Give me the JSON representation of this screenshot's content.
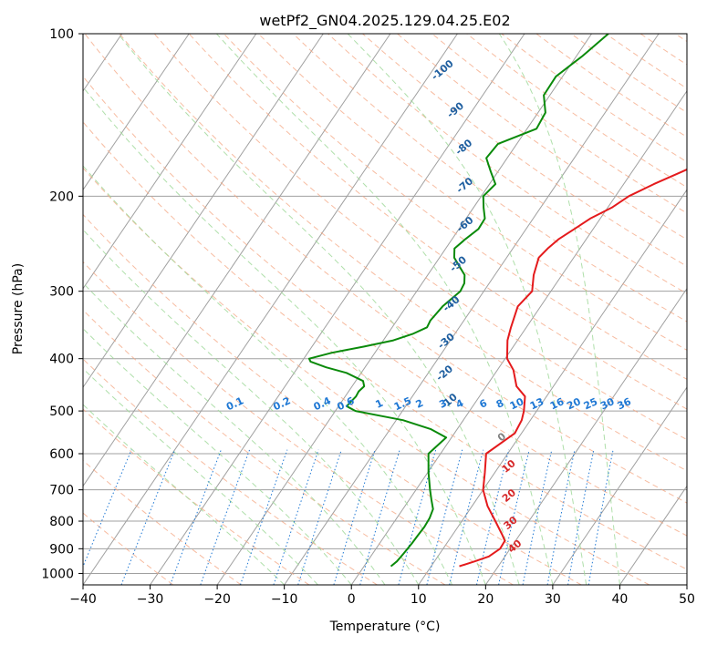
{
  "chart_data": {
    "type": "line",
    "title": "wetPf2_GN04.2025.129.04.25.E02",
    "xlabel": "Temperature (°C)",
    "ylabel": "Pressure (hPa)",
    "xlim": [
      -40,
      50
    ],
    "ylim": [
      1050,
      100
    ],
    "x_ticks": [
      "−40",
      "−30",
      "−20",
      "−10",
      "0",
      "10",
      "20",
      "30",
      "40",
      "50"
    ],
    "x_tick_values": [
      -40,
      -30,
      -20,
      -10,
      0,
      10,
      20,
      30,
      40,
      50
    ],
    "y_ticks": [
      "100",
      "200",
      "300",
      "400",
      "500",
      "600",
      "700",
      "800",
      "900",
      "1000"
    ],
    "y_tick_values": [
      100,
      200,
      300,
      400,
      500,
      600,
      700,
      800,
      900,
      1000
    ],
    "y_scale": "log",
    "grid": true,
    "colors": {
      "temperature": "#e41a1c",
      "dewpoint": "#0a8a0a",
      "dry_adiabats": "#f4a582",
      "moist_adiabats": "#a1d99b",
      "mixing_ratio": "#1f78d4",
      "isotherms": "#a0a0a0",
      "adiabat_labels": "#1f5fa0",
      "theta_e_labels": "#d62728",
      "zero_label": "#808080"
    },
    "series": [
      {
        "key": "temperature",
        "pressure": [
          970,
          950,
          930,
          900,
          870,
          850,
          800,
          750,
          700,
          650,
          600,
          550,
          520,
          500,
          470,
          450,
          420,
          400,
          370,
          350,
          320,
          300,
          280,
          260,
          250,
          240,
          230,
          220,
          210,
          200,
          190,
          180,
          170,
          160,
          150,
          140,
          130,
          120,
          110,
          100
        ],
        "values": [
          14.2,
          16,
          17.6,
          18.5,
          18.4,
          17.5,
          15,
          12.3,
          10,
          8.5,
          6.8,
          9,
          8.7,
          8.1,
          6.8,
          4.5,
          2.4,
          0.3,
          -1.5,
          -2.3,
          -3.4,
          -2.8,
          -4.2,
          -5.2,
          -4.8,
          -4.1,
          -2.8,
          -1.5,
          0.6,
          2,
          4.5,
          7.5,
          10.5,
          13,
          14.7,
          15.6,
          17.2,
          19.1,
          21.4,
          23.6
        ]
      },
      {
        "key": "dewpoint",
        "pressure": [
          970,
          950,
          920,
          880,
          850,
          820,
          790,
          760,
          730,
          700,
          650,
          600,
          560,
          540,
          520,
          510,
          500,
          490,
          470,
          460,
          450,
          440,
          425,
          415,
          405,
          400,
          390,
          380,
          370,
          360,
          350,
          340,
          320,
          300,
          290,
          280,
          260,
          250,
          240,
          230,
          220,
          210,
          200,
          190,
          180,
          170,
          160,
          150,
          140,
          130,
          120,
          110,
          100
        ],
        "values": [
          4,
          4.4,
          4.6,
          4.8,
          4.9,
          5,
          4.9,
          4.5,
          3.3,
          2.1,
          0.1,
          -1.8,
          -0.8,
          -4,
          -9,
          -13,
          -17,
          -18.8,
          -18.4,
          -18.5,
          -18.2,
          -18.9,
          -22.2,
          -25.8,
          -28.7,
          -29.2,
          -26.4,
          -22.3,
          -18.5,
          -16.3,
          -14.8,
          -15,
          -14.6,
          -13.5,
          -13.7,
          -14.5,
          -17.8,
          -18.7,
          -18,
          -17.1,
          -17.2,
          -18.5,
          -19.7,
          -19.1,
          -21.1,
          -23.1,
          -22.8,
          -18.6,
          -18.9,
          -20.9,
          -21,
          -19.1,
          -17.5
        ]
      }
    ],
    "annotations": {
      "adiabat_labels": [
        {
          "text": "-100",
          "p": 118,
          "t": -38
        },
        {
          "text": "-90",
          "p": 140,
          "t": -32
        },
        {
          "text": "-80",
          "p": 164,
          "t": -27
        },
        {
          "text": "-70",
          "p": 193,
          "t": -23
        },
        {
          "text": "-60",
          "p": 228,
          "t": -19
        },
        {
          "text": "-50",
          "p": 270,
          "t": -16
        },
        {
          "text": "-40",
          "p": 320,
          "t": -13
        },
        {
          "text": "-30",
          "p": 375,
          "t": -10
        },
        {
          "text": "-20",
          "p": 430,
          "t": -7
        },
        {
          "text": "-10",
          "p": 485,
          "t": -3.5
        }
      ],
      "mixing_ratio_labels": [
        "0.1",
        "0.2",
        "0.4",
        "0.6",
        "1",
        "1.5",
        "2",
        "3",
        "4",
        "6",
        "8",
        "10",
        "13",
        "16",
        "20",
        "25",
        "30",
        "36"
      ],
      "mixing_ratio_label_t": [
        -35,
        -28,
        -22,
        -18.5,
        -13.5,
        -10,
        -7.5,
        -4,
        -1.5,
        2,
        4.5,
        7,
        10,
        13,
        15.5,
        18,
        20.5,
        23
      ],
      "theta_e_labels": [
        {
          "text": "0",
          "p": 565,
          "t": 8
        },
        {
          "text": "10",
          "p": 640,
          "t": 12
        },
        {
          "text": "20",
          "p": 725,
          "t": 15
        },
        {
          "text": "30",
          "p": 815,
          "t": 18
        },
        {
          "text": "40",
          "p": 900,
          "t": 21
        }
      ]
    }
  }
}
